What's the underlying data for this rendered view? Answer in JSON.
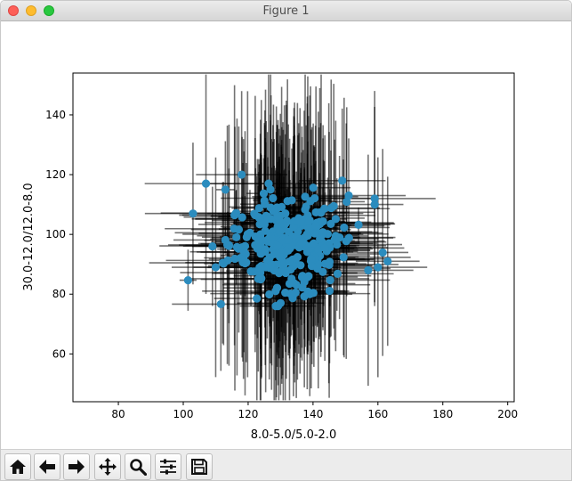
{
  "window": {
    "title": "Figure 1"
  },
  "toolbar": {
    "buttons": [
      {
        "name": "home-button",
        "icon": "home-icon"
      },
      {
        "name": "back-button",
        "icon": "arrow-left-icon"
      },
      {
        "name": "forward-button",
        "icon": "arrow-right-icon"
      },
      {
        "name": "pan-button",
        "icon": "move-icon"
      },
      {
        "name": "zoom-button",
        "icon": "zoom-icon"
      },
      {
        "name": "configure-subplots-button",
        "icon": "sliders-icon"
      },
      {
        "name": "save-button",
        "icon": "save-icon"
      }
    ]
  },
  "chart_data": {
    "type": "scatter",
    "title": "",
    "xlabel": "8.0-5.0/5.0-2.0",
    "ylabel": "30.0-12.0/12.0-8.0",
    "xlim": [
      66,
      202
    ],
    "ylim": [
      44,
      154
    ],
    "xticks": [
      80,
      100,
      120,
      140,
      160,
      180,
      200
    ],
    "yticks": [
      60,
      80,
      100,
      120,
      140
    ],
    "grid": false,
    "marker_color": "#2b8cbe",
    "errorbar_color": "#000000",
    "n_points": 300,
    "x_center": 132,
    "y_center": 97,
    "x_spread": 9,
    "y_spread": 8,
    "error_x": [
      1,
      25
    ],
    "error_y": [
      4,
      48
    ],
    "notable_points": [
      {
        "x": 103,
        "y": 107
      },
      {
        "x": 107,
        "y": 117
      },
      {
        "x": 109,
        "y": 96
      },
      {
        "x": 110,
        "y": 89
      },
      {
        "x": 118,
        "y": 120
      },
      {
        "x": 149,
        "y": 118
      },
      {
        "x": 157,
        "y": 88
      },
      {
        "x": 159,
        "y": 112
      },
      {
        "x": 159,
        "y": 110
      },
      {
        "x": 160,
        "y": 89
      },
      {
        "x": 163,
        "y": 91
      },
      {
        "x": 130,
        "y": 77
      },
      {
        "x": 139,
        "y": 80
      },
      {
        "x": 151,
        "y": 113
      }
    ]
  }
}
